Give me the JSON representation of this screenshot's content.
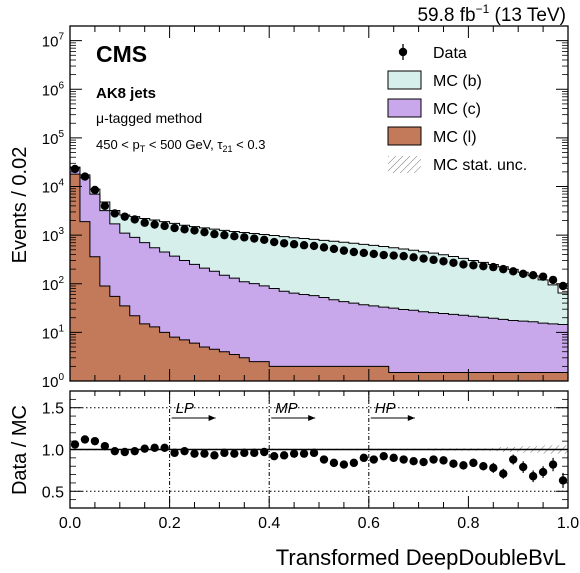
{
  "header": {
    "lumi": "59.8 fb",
    "lumi_exp": "−1",
    "energy": " (13 TeV)"
  },
  "labels": {
    "cms": "CMS",
    "jets": "AK8 jets",
    "method_mu": "μ",
    "method_rest": "-tagged method",
    "sel_a": "450 < p",
    "sel_sub_T": "T",
    "sel_b": " < 500 GeV, τ",
    "sel_sub_21": "21",
    "sel_c": " < 0.3"
  },
  "wp_labels": [
    "LP",
    "MP",
    "HP"
  ],
  "colors": {
    "mc_b": "#d6efeb",
    "mc_c": "#c8a8ea",
    "mc_l": "#c27a5b"
  },
  "chart_data": [
    {
      "type": "area",
      "panel": "main",
      "stacked": true,
      "log_y": true,
      "ylabel": "Events / 0.02",
      "ylim": [
        1,
        20000000
      ],
      "xlim": [
        0,
        1
      ],
      "bin_width": 0.02,
      "y_ticks": [
        {
          "value": 1,
          "mant": "10",
          "exp": "0"
        },
        {
          "value": 10,
          "mant": "10",
          "exp": "1"
        },
        {
          "value": 100,
          "mant": "10",
          "exp": "2"
        },
        {
          "value": 1000,
          "mant": "10",
          "exp": "3"
        },
        {
          "value": 10000,
          "mant": "10",
          "exp": "4"
        },
        {
          "value": 100000,
          "mant": "10",
          "exp": "5"
        },
        {
          "value": 1000000,
          "mant": "10",
          "exp": "6"
        },
        {
          "value": 10000000,
          "mant": "10",
          "exp": "7"
        }
      ],
      "legend": [
        "Data",
        "MC (b)",
        "MC (c)",
        "MC (l)",
        "MC stat. unc."
      ],
      "series": [
        {
          "name": "MC (l)",
          "values": [
            18000,
            1900,
            360,
            90,
            55,
            35,
            22,
            15,
            13,
            10,
            8,
            7,
            6,
            5,
            4.5,
            4,
            3.5,
            3,
            2.5,
            2.5,
            2,
            2,
            2,
            2,
            2,
            2,
            2,
            2,
            2,
            2,
            2,
            2,
            1.5,
            1.5,
            1.5,
            1.5,
            1.5,
            1.5,
            1.5,
            1.5,
            1.5,
            1.5,
            1.5,
            1.5,
            1.5,
            1.5,
            1.5,
            1.5,
            1.5,
            1.5
          ]
        },
        {
          "name": "MC (c)",
          "values": [
            6000,
            13200,
            6600,
            3100,
            1650,
            1065,
            878,
            685,
            537,
            440,
            362,
            293,
            244,
            205,
            176,
            146,
            127,
            107,
            98,
            88,
            78,
            68,
            62,
            58,
            55,
            50,
            45,
            41,
            38,
            35,
            33,
            31,
            30,
            28,
            27,
            25,
            24,
            23,
            22,
            21,
            20,
            19,
            18,
            17,
            16,
            15.5,
            15,
            14,
            13.5,
            13
          ]
        },
        {
          "name": "MC (b)",
          "values": [
            1000,
            2200,
            1900,
            1600,
            1500,
            1500,
            1500,
            1500,
            1500,
            1450,
            1380,
            1300,
            1250,
            1200,
            1150,
            1100,
            1060,
            1020,
            980,
            940,
            900,
            860,
            820,
            790,
            760,
            730,
            700,
            670,
            640,
            610,
            580,
            550,
            520,
            490,
            460,
            430,
            400,
            370,
            340,
            310,
            280,
            255,
            230,
            205,
            180,
            155,
            130,
            105,
            80,
            50
          ]
        }
      ],
      "data": [
        23000,
        16000,
        8500,
        4000,
        2800,
        2400,
        2100,
        1800,
        1650,
        1550,
        1400,
        1320,
        1250,
        1150,
        1050,
        1000,
        950,
        900,
        850,
        800,
        720,
        680,
        650,
        620,
        600,
        560,
        520,
        480,
        450,
        430,
        410,
        390,
        380,
        370,
        350,
        330,
        310,
        290,
        270,
        250,
        240,
        230,
        220,
        200,
        180,
        160,
        150,
        140,
        120,
        90
      ]
    },
    {
      "type": "scatter",
      "panel": "ratio",
      "ylabel": "Data / MC",
      "xlabel": "Transformed DeepDoubleBvL",
      "ylim": [
        0.3,
        1.7
      ],
      "xlim": [
        0,
        1
      ],
      "x_ticks": [
        "0.0",
        "0.2",
        "0.4",
        "0.6",
        "0.8",
        "1.0"
      ],
      "y_ticks": [
        "0.5",
        "1.0",
        "1.5"
      ],
      "working_points": [
        0.2,
        0.4,
        0.6
      ],
      "x": [
        0.01,
        0.03,
        0.05,
        0.07,
        0.09,
        0.11,
        0.13,
        0.15,
        0.17,
        0.19,
        0.21,
        0.23,
        0.25,
        0.27,
        0.29,
        0.31,
        0.33,
        0.35,
        0.37,
        0.39,
        0.41,
        0.43,
        0.45,
        0.47,
        0.49,
        0.51,
        0.53,
        0.55,
        0.57,
        0.59,
        0.61,
        0.63,
        0.65,
        0.67,
        0.69,
        0.71,
        0.73,
        0.75,
        0.77,
        0.79,
        0.81,
        0.83,
        0.85,
        0.87,
        0.89,
        0.91,
        0.93,
        0.95,
        0.97,
        0.99
      ],
      "y": [
        1.06,
        1.12,
        1.1,
        1.04,
        0.98,
        0.97,
        0.98,
        1.01,
        1.02,
        1.02,
        0.96,
        0.98,
        0.95,
        0.95,
        0.93,
        0.96,
        0.95,
        0.96,
        0.96,
        0.97,
        0.92,
        0.93,
        0.95,
        0.95,
        0.96,
        0.88,
        0.84,
        0.82,
        0.84,
        0.9,
        0.88,
        0.92,
        0.9,
        0.88,
        0.86,
        0.85,
        0.88,
        0.87,
        0.83,
        0.81,
        0.84,
        0.8,
        0.78,
        0.71,
        0.88,
        0.79,
        0.68,
        0.73,
        0.82,
        0.63
      ],
      "err": [
        0.02,
        0.02,
        0.02,
        0.02,
        0.02,
        0.02,
        0.02,
        0.02,
        0.02,
        0.02,
        0.02,
        0.02,
        0.02,
        0.02,
        0.02,
        0.02,
        0.02,
        0.02,
        0.02,
        0.02,
        0.03,
        0.03,
        0.03,
        0.03,
        0.03,
        0.03,
        0.03,
        0.03,
        0.03,
        0.03,
        0.04,
        0.04,
        0.04,
        0.04,
        0.04,
        0.04,
        0.04,
        0.04,
        0.05,
        0.05,
        0.05,
        0.05,
        0.06,
        0.06,
        0.06,
        0.07,
        0.07,
        0.07,
        0.08,
        0.09
      ],
      "unc_band": [
        0.01,
        0.01,
        0.01,
        0.01,
        0.01,
        0.01,
        0.01,
        0.01,
        0.01,
        0.01,
        0.01,
        0.01,
        0.01,
        0.01,
        0.01,
        0.01,
        0.01,
        0.01,
        0.01,
        0.01,
        0.01,
        0.01,
        0.01,
        0.01,
        0.01,
        0.01,
        0.01,
        0.01,
        0.01,
        0.01,
        0.01,
        0.01,
        0.01,
        0.01,
        0.01,
        0.01,
        0.015,
        0.015,
        0.015,
        0.015,
        0.015,
        0.015,
        0.02,
        0.03,
        0.03,
        0.04,
        0.04,
        0.05,
        0.05,
        0.05
      ]
    }
  ]
}
